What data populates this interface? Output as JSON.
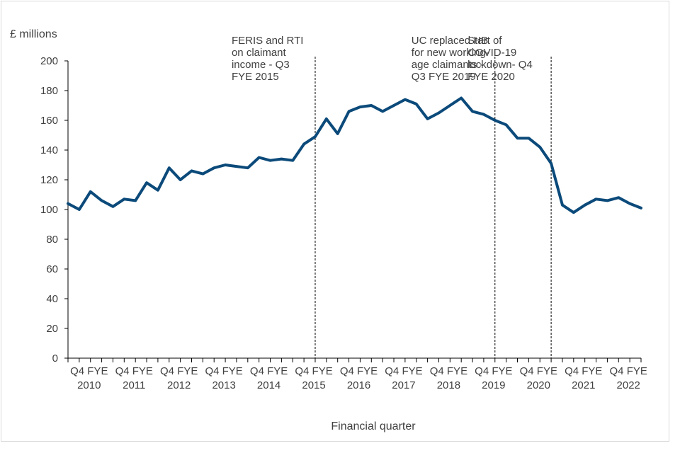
{
  "chart_data": {
    "type": "line",
    "title": "",
    "ylabel": "£ millions",
    "xlabel": "Financial quarter",
    "ylim": [
      0,
      200
    ],
    "yticks": [
      0,
      20,
      40,
      60,
      80,
      100,
      120,
      140,
      160,
      180,
      200
    ],
    "grid": false,
    "color": "#0b4a7a",
    "x_tick_labels": [
      {
        "line1": "Q4 FYE",
        "line2": "2010"
      },
      {
        "line1": "Q4 FYE",
        "line2": "2011"
      },
      {
        "line1": "Q4 FYE",
        "line2": "2012"
      },
      {
        "line1": "Q4 FYE",
        "line2": "2013"
      },
      {
        "line1": "Q4 FYE",
        "line2": "2014"
      },
      {
        "line1": "Q4 FYE",
        "line2": "2015"
      },
      {
        "line1": "Q4 FYE",
        "line2": "2016"
      },
      {
        "line1": "Q4 FYE",
        "line2": "2017"
      },
      {
        "line1": "Q4 FYE",
        "line2": "2018"
      },
      {
        "line1": "Q4 FYE",
        "line2": "2019"
      },
      {
        "line1": "Q4 FYE",
        "line2": "2020"
      },
      {
        "line1": "Q4 FYE",
        "line2": "2021"
      },
      {
        "line1": "Q4 FYE",
        "line2": "2022"
      }
    ],
    "values": [
      104,
      100,
      112,
      106,
      102,
      107,
      106,
      118,
      113,
      128,
      120,
      126,
      124,
      128,
      130,
      129,
      128,
      135,
      133,
      134,
      133,
      144,
      149,
      161,
      151,
      166,
      169,
      170,
      166,
      170,
      174,
      171,
      161,
      165,
      170,
      175,
      166,
      164,
      160,
      157,
      148,
      148,
      142,
      131,
      103,
      98,
      103,
      107,
      106,
      108,
      104,
      101
    ],
    "annotations": [
      {
        "line_at": 22,
        "lines": [
          "FERIS and RTI",
          "on claimant",
          "income - Q3",
          "FYE 2015"
        ]
      },
      {
        "line_at": 38,
        "lines": [
          "UC replaced HB",
          "for new working-",
          "age claimants -",
          "Q3 FYE 2019"
        ]
      },
      {
        "line_at": 43,
        "lines": [
          "Start of",
          "COVID-19",
          "lockdown- Q4",
          "FYE 2020"
        ]
      }
    ]
  }
}
